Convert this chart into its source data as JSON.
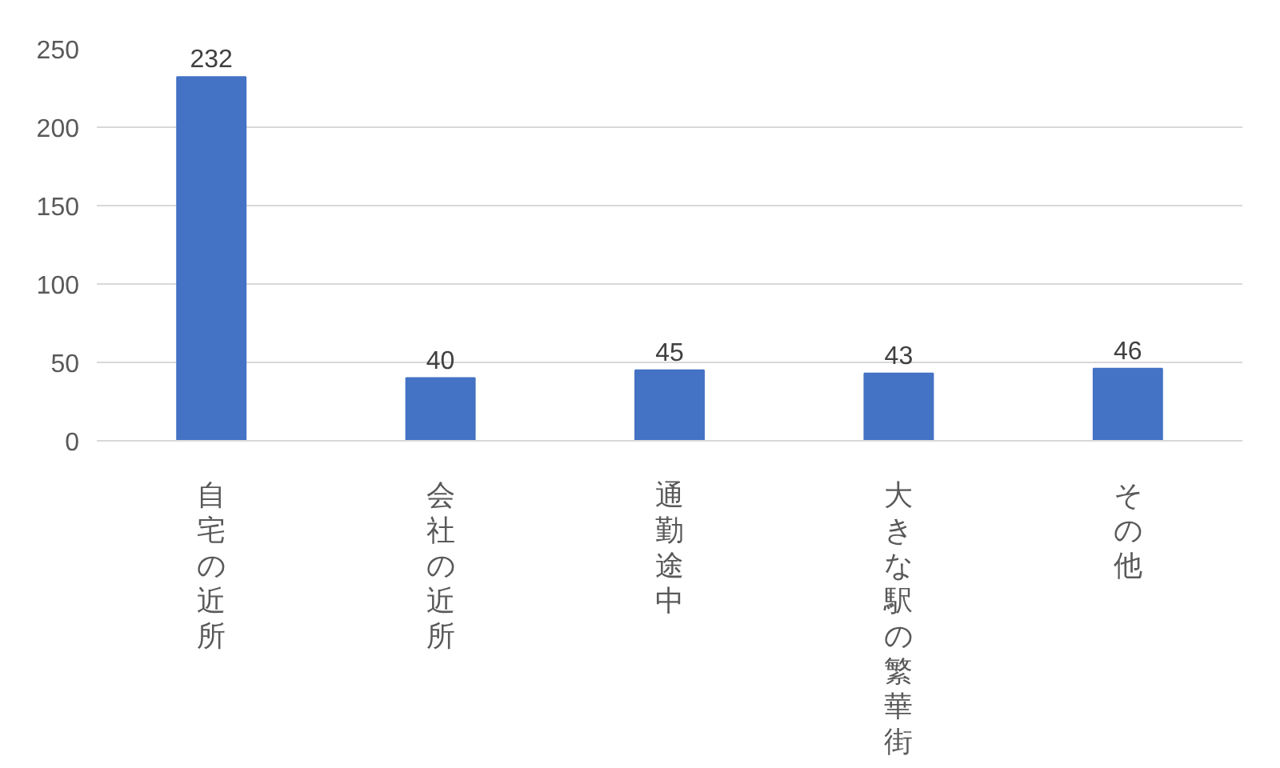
{
  "chart_data": {
    "type": "bar",
    "categories": [
      "自宅の近所",
      "会社の近所",
      "通勤途中",
      "大きな駅の繁華街",
      "その他"
    ],
    "values": [
      232,
      40,
      45,
      43,
      46
    ],
    "color": "#4472c4",
    "ylim": [
      0,
      250
    ],
    "yticks": [
      0,
      50,
      100,
      150,
      200,
      250
    ],
    "grid": "y",
    "data_labels": true
  }
}
